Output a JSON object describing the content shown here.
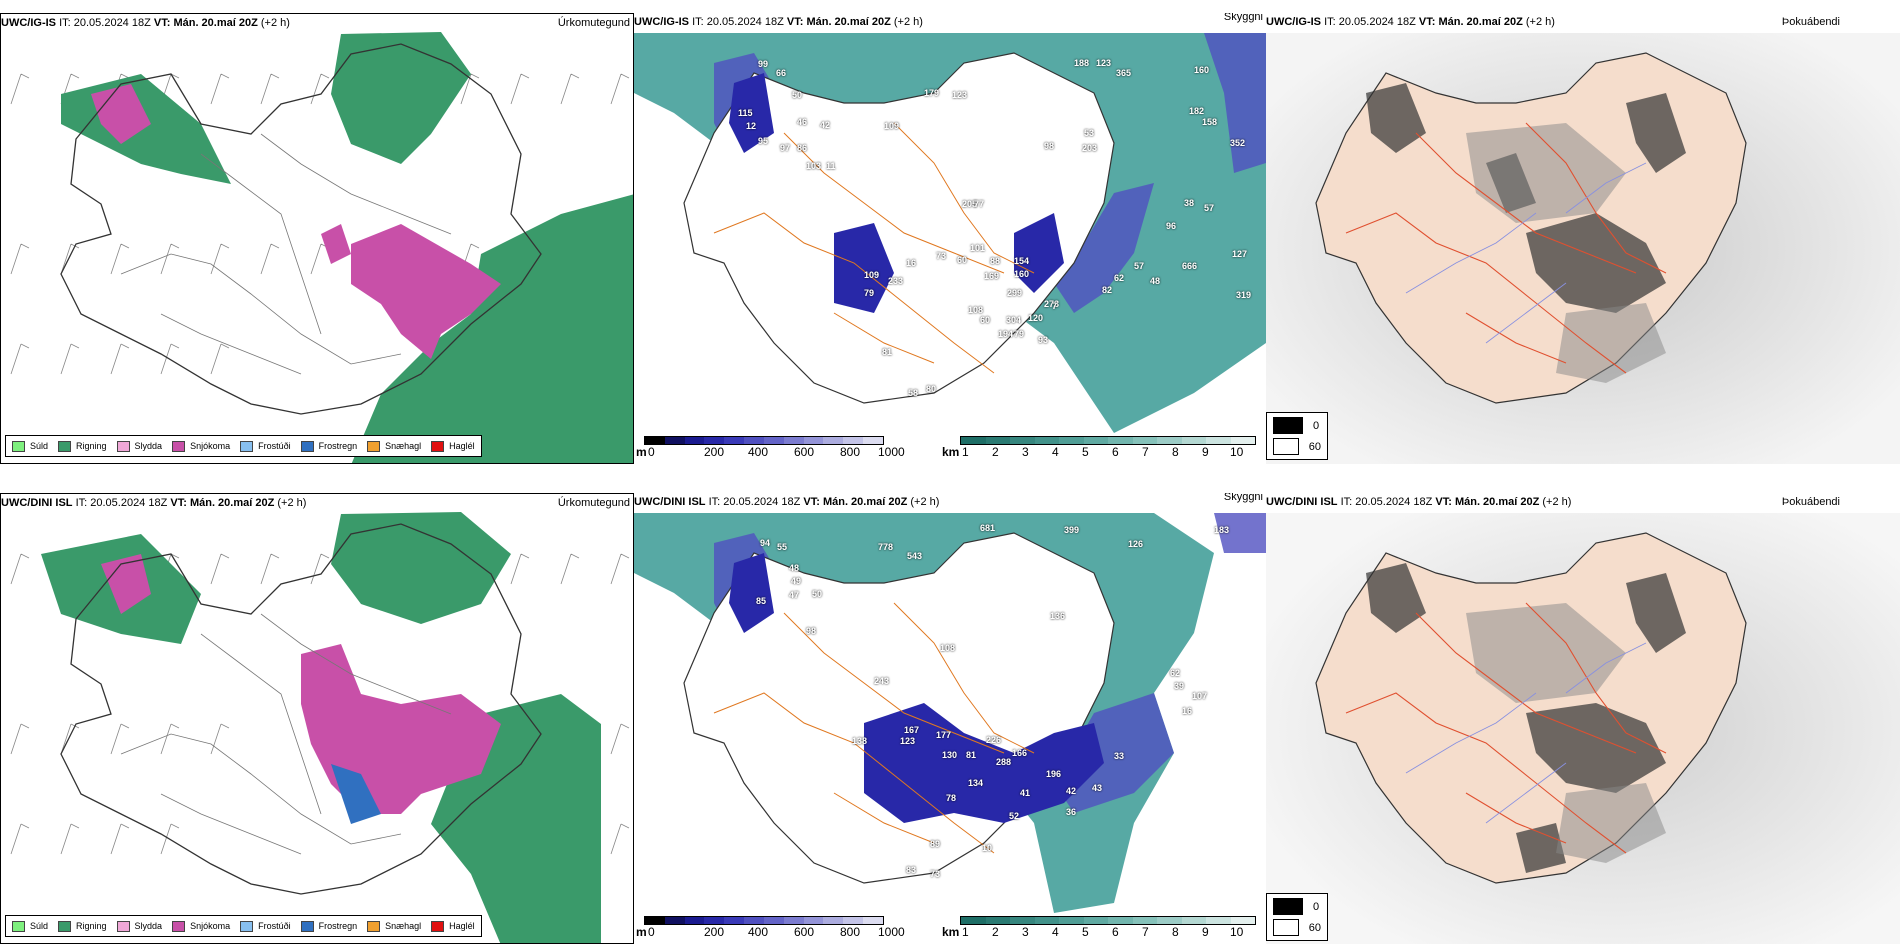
{
  "rows": [
    {
      "model": "UWC/IG-IS",
      "it_label": "IT:",
      "it_value": "20.05.2024 18Z",
      "vt_text": "VT: Mán. 20.maí 20Z",
      "lead": "(+2 h)"
    },
    {
      "model": "UWC/DINI ISL",
      "it_label": "IT:",
      "it_value": "20.05.2024 18Z",
      "vt_text": "VT: Mán. 20.maí 20Z",
      "lead": "(+2 h)"
    }
  ],
  "panel_titles": {
    "precip_type": "Úrkomutegund",
    "cloud": "Skyggni",
    "fog": "Þokuábendi"
  },
  "precip_legend": [
    {
      "label": "Súld",
      "color": "#7ef07e"
    },
    {
      "label": "Rigning",
      "color": "#3a9a6a"
    },
    {
      "label": "Slydda",
      "color": "#f0a8d8"
    },
    {
      "label": "Snjókoma",
      "color": "#c850a8"
    },
    {
      "label": "Frostúði",
      "color": "#88c0f0"
    },
    {
      "label": "Frostregn",
      "color": "#3070c0"
    },
    {
      "label": "Snæhagl",
      "color": "#f0a030"
    },
    {
      "label": "Haglél",
      "color": "#e01010"
    }
  ],
  "cloudbase_bar": {
    "unit": "m",
    "labels": [
      "0",
      "200",
      "400",
      "600",
      "800",
      "1000"
    ],
    "colors": [
      "#000000",
      "#101060",
      "#1a1a90",
      "#2828a8",
      "#3a3ab8",
      "#5050c0",
      "#6464c8",
      "#7c7cd0",
      "#9494d8",
      "#acacdf",
      "#c4c4e8",
      "#dcdcf0"
    ]
  },
  "visibility_bar": {
    "unit": "km",
    "labels": [
      "1",
      "2",
      "3",
      "4",
      "5",
      "6",
      "7",
      "8",
      "9",
      "10"
    ],
    "colors": [
      "#1e6e66",
      "#2a7a72",
      "#36867e",
      "#42928a",
      "#509e96",
      "#60aaa2",
      "#72b6ae",
      "#86c2ba",
      "#9cccc6",
      "#b4d8d2",
      "#cce4e0",
      "#e4f0ee"
    ]
  },
  "fog_legend": [
    {
      "label": "0",
      "color": "#000000"
    },
    {
      "label": "60",
      "color": "#ffffff"
    }
  ],
  "cloud_labels_top": [
    "99",
    "66",
    "50",
    "46",
    "42",
    "97",
    "86",
    "103",
    "11",
    "115",
    "12",
    "95",
    "188",
    "123",
    "365",
    "160",
    "182",
    "158",
    "352",
    "179",
    "123",
    "109",
    "98",
    "53",
    "203",
    "205",
    "77",
    "60",
    "73",
    "101",
    "88",
    "154",
    "160",
    "169",
    "233",
    "109",
    "79",
    "16",
    "299",
    "273",
    "108",
    "60",
    "304",
    "120",
    "194",
    "79",
    "93",
    "7",
    "96",
    "38",
    "57",
    "57",
    "666",
    "62",
    "82",
    "48",
    "127",
    "319",
    "58",
    "80",
    "81"
  ],
  "cloud_labels_bottom": [
    "94",
    "55",
    "48",
    "49",
    "47",
    "50",
    "85",
    "98",
    "778",
    "543",
    "681",
    "399",
    "126",
    "183",
    "167",
    "123",
    "177",
    "138",
    "130",
    "81",
    "226",
    "166",
    "288",
    "134",
    "196",
    "41",
    "42",
    "43",
    "33",
    "78",
    "52",
    "36",
    "89",
    "83",
    "73",
    "10",
    "62",
    "39",
    "107",
    "16",
    "136",
    "243",
    "108"
  ]
}
